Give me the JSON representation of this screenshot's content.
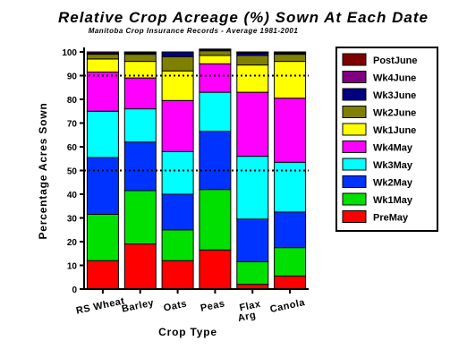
{
  "chart_data": {
    "type": "bar",
    "stacked": true,
    "title": "Relative Crop Acreage (%) Sown At Each Date",
    "subtitle": "Manitoba Crop Insurance Records - Average 1981-2001",
    "xlabel": "Crop Type",
    "ylabel": "Percentage Acres Sown",
    "ylim": [
      0,
      100
    ],
    "yticks": [
      0,
      10,
      20,
      30,
      40,
      50,
      60,
      70,
      80,
      90,
      100
    ],
    "reference_lines": [
      50,
      90
    ],
    "legend_position": "right",
    "categories": [
      {
        "label": "RS Wheat",
        "label2": ""
      },
      {
        "label": "Barley",
        "label2": ""
      },
      {
        "label": "Oats",
        "label2": ""
      },
      {
        "label": "Peas",
        "label2": ""
      },
      {
        "label": "Flax",
        "label2": "Arg"
      },
      {
        "label": "Canola",
        "label2": ""
      }
    ],
    "series": [
      {
        "name": "PreMay",
        "color": "#ff0000",
        "values": [
          12,
          19,
          12,
          16.5,
          2,
          5.5
        ]
      },
      {
        "name": "Wk1May",
        "color": "#00e000",
        "values": [
          19.5,
          22.5,
          13,
          25.5,
          9.5,
          12
        ]
      },
      {
        "name": "Wk2May",
        "color": "#0033ff",
        "values": [
          24,
          20.5,
          15,
          24.5,
          18,
          15
        ]
      },
      {
        "name": "Wk3May",
        "color": "#00ffff",
        "values": [
          19.5,
          14,
          18,
          16.5,
          26.5,
          21
        ]
      },
      {
        "name": "Wk4May",
        "color": "#ff00ff",
        "values": [
          16.5,
          13,
          21.5,
          12,
          27,
          27
        ]
      },
      {
        "name": "Wk1June",
        "color": "#ffff00",
        "values": [
          5.5,
          7,
          12.5,
          3.5,
          11.5,
          15.5
        ]
      },
      {
        "name": "Wk2June",
        "color": "#808000",
        "values": [
          2,
          3,
          6,
          2,
          4,
          3
        ]
      },
      {
        "name": "Wk3June",
        "color": "#000080",
        "values": [
          0.5,
          0.5,
          2,
          0.5,
          1,
          0.5
        ]
      },
      {
        "name": "Wk4June",
        "color": "#800080",
        "values": [
          0.5,
          0.3,
          0,
          0.2,
          0.3,
          0.3
        ]
      },
      {
        "name": "PostJune",
        "color": "#800000",
        "values": [
          0,
          0.2,
          0,
          0,
          0.2,
          0.2
        ]
      }
    ]
  }
}
